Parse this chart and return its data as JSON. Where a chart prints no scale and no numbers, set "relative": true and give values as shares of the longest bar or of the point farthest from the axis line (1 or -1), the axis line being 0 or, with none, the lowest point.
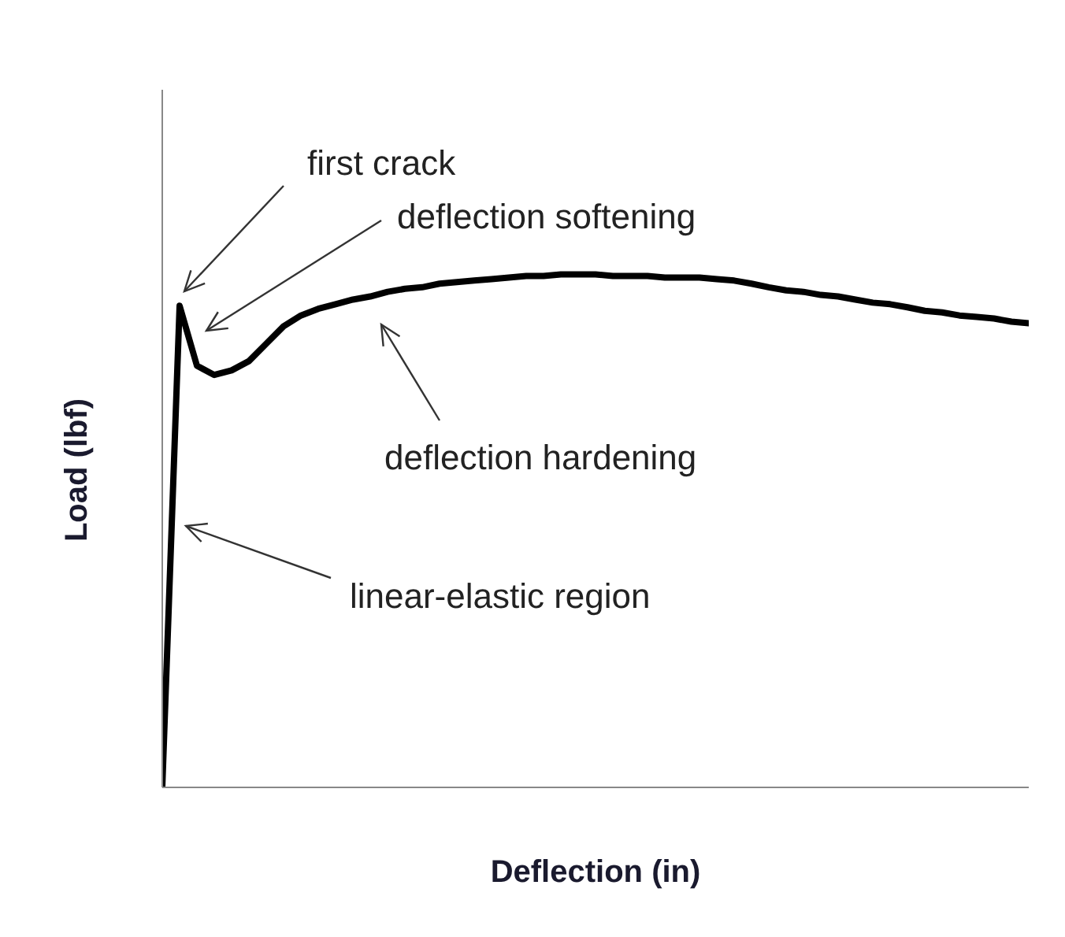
{
  "chart_data": {
    "type": "line",
    "relative": true,
    "xlabel": "Deflection (in)",
    "ylabel": "Load (lbf)",
    "grid": false,
    "marker": "none",
    "line_style": "solid",
    "annotations": [
      "first crack",
      "deflection softening",
      "deflection hardening",
      "linear-elastic region"
    ],
    "categories": [
      null,
      null,
      null,
      null,
      null,
      null,
      null,
      null,
      null,
      null,
      null,
      null,
      null,
      null,
      null,
      null,
      null,
      null,
      null,
      null,
      null,
      null,
      null,
      null,
      null,
      null,
      null,
      null,
      null,
      null,
      null,
      null,
      null,
      null,
      null,
      null,
      null,
      null,
      null,
      null,
      null,
      null,
      null,
      null,
      null,
      null,
      null,
      null,
      null,
      null,
      null
    ],
    "series": [
      {
        "color": "#000000",
        "values": [
          0,
          0.939,
          0.822,
          0.804,
          0.813,
          0.831,
          0.865,
          0.899,
          0.92,
          0.933,
          0.942,
          0.951,
          0.957,
          0.966,
          0.972,
          0.975,
          0.982,
          0.985,
          0.988,
          0.991,
          0.994,
          0.997,
          0.997,
          1,
          1,
          1,
          0.997,
          0.997,
          0.997,
          0.994,
          0.994,
          0.994,
          0.991,
          0.988,
          0.982,
          0.975,
          0.969,
          0.966,
          0.96,
          0.957,
          0.951,
          0.945,
          0.942,
          0.936,
          0.929,
          0.926,
          0.92,
          0.917,
          0.914,
          0.908,
          0.905
        ]
      }
    ]
  }
}
